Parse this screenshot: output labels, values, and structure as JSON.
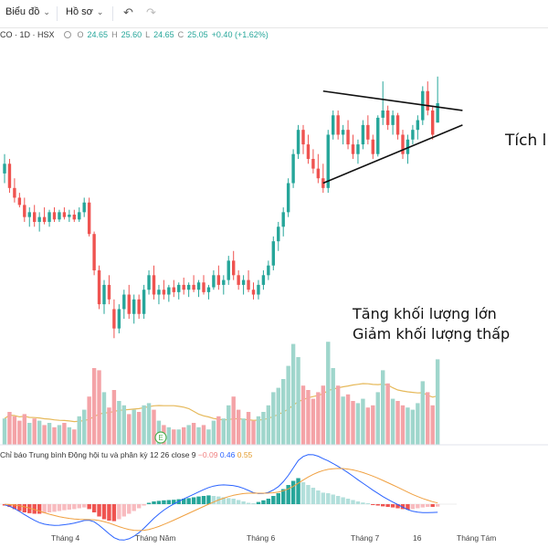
{
  "toolbar": {
    "chart_menu": "Biểu đồ",
    "profile_menu": "Hồ sơ"
  },
  "legend": {
    "symbol": "CO · 1D · HSX",
    "o_label": "O",
    "o_value": "24.65",
    "h_label": "H",
    "h_value": "25.60",
    "l_label": "L",
    "l_value": "24.65",
    "c_label": "C",
    "c_value": "25.05",
    "change": "+0.40 (+1.62%)"
  },
  "annotations": {
    "pattern_label": "Tích l",
    "volume_line1": "Tăng khối lượng lớn",
    "volume_line2": "Giảm khối lượng thấp"
  },
  "indicator": {
    "name": "Chỉ báo Trung bình Động hội tu và phân kỳ 12 26 close 9",
    "hist_value": "−0.09",
    "macd_value": "0.46",
    "signal_value": "0.55"
  },
  "earnings_marker": "E",
  "xaxis": {
    "labels": [
      "Tháng 4",
      "Tháng Năm",
      "Tháng 6",
      "Tháng 7",
      "16",
      "Tháng Tám"
    ]
  },
  "colors": {
    "up": "#26a69a",
    "down": "#ef5350",
    "vol_up": "#9fd6cc",
    "vol_down": "#f4a3a7",
    "ma": "#e6b95a",
    "macd": "#2962ff",
    "signal": "#f0a040"
  },
  "chart_data": {
    "type": "candlestick",
    "candles": [
      [
        23.6,
        24.0,
        23.4,
        23.8
      ],
      [
        23.8,
        23.9,
        23.2,
        23.3
      ],
      [
        23.3,
        23.5,
        23.0,
        23.1
      ],
      [
        23.1,
        23.2,
        22.9,
        22.95
      ],
      [
        22.95,
        23.1,
        22.6,
        22.7
      ],
      [
        22.7,
        22.9,
        22.5,
        22.8
      ],
      [
        22.8,
        22.95,
        22.5,
        22.6
      ],
      [
        22.6,
        22.8,
        22.4,
        22.7
      ],
      [
        22.7,
        22.9,
        22.55,
        22.6
      ],
      [
        22.6,
        22.85,
        22.5,
        22.8
      ],
      [
        22.8,
        22.9,
        22.6,
        22.65
      ],
      [
        22.65,
        22.85,
        22.6,
        22.8
      ],
      [
        22.8,
        22.9,
        22.65,
        22.7
      ],
      [
        22.7,
        22.85,
        22.6,
        22.75
      ],
      [
        22.75,
        22.85,
        22.6,
        22.65
      ],
      [
        22.65,
        22.9,
        22.6,
        22.8
      ],
      [
        22.8,
        23.1,
        22.7,
        23.0
      ],
      [
        23.0,
        23.1,
        22.3,
        22.35
      ],
      [
        22.35,
        22.4,
        21.5,
        21.6
      ],
      [
        21.6,
        21.7,
        20.8,
        20.9
      ],
      [
        20.9,
        21.4,
        20.7,
        21.3
      ],
      [
        21.3,
        21.5,
        20.9,
        21.0
      ],
      [
        20.8,
        21.0,
        20.2,
        20.4
      ],
      [
        20.4,
        20.9,
        20.3,
        20.8
      ],
      [
        20.8,
        21.2,
        20.6,
        21.1
      ],
      [
        21.1,
        21.3,
        20.6,
        20.7
      ],
      [
        20.7,
        21.1,
        20.5,
        21.0
      ],
      [
        21.0,
        21.1,
        20.6,
        20.7
      ],
      [
        20.7,
        21.3,
        20.6,
        21.2
      ],
      [
        21.2,
        21.6,
        21.1,
        21.5
      ],
      [
        21.5,
        21.7,
        21.0,
        21.1
      ],
      [
        21.1,
        21.3,
        20.9,
        21.2
      ],
      [
        21.2,
        21.4,
        21.0,
        21.1
      ],
      [
        21.1,
        21.3,
        20.95,
        21.25
      ],
      [
        21.25,
        21.4,
        21.05,
        21.15
      ],
      [
        21.15,
        21.35,
        21.0,
        21.3
      ],
      [
        21.3,
        21.45,
        21.1,
        21.2
      ],
      [
        21.2,
        21.35,
        21.05,
        21.3
      ],
      [
        21.3,
        21.5,
        21.15,
        21.2
      ],
      [
        21.2,
        21.4,
        21.05,
        21.35
      ],
      [
        21.35,
        21.5,
        21.1,
        21.15
      ],
      [
        21.15,
        21.3,
        21.0,
        21.25
      ],
      [
        21.25,
        21.6,
        21.2,
        21.5
      ],
      [
        21.5,
        21.7,
        21.2,
        21.3
      ],
      [
        21.3,
        21.5,
        21.1,
        21.4
      ],
      [
        21.4,
        21.9,
        21.3,
        21.8
      ],
      [
        21.8,
        22.0,
        21.4,
        21.5
      ],
      [
        21.5,
        21.6,
        21.2,
        21.3
      ],
      [
        21.3,
        21.5,
        21.1,
        21.4
      ],
      [
        21.4,
        21.6,
        21.15,
        21.2
      ],
      [
        21.2,
        21.35,
        21.0,
        21.1
      ],
      [
        21.1,
        21.4,
        21.0,
        21.3
      ],
      [
        21.3,
        21.6,
        21.2,
        21.5
      ],
      [
        21.5,
        21.8,
        21.4,
        21.7
      ],
      [
        21.7,
        22.3,
        21.6,
        22.2
      ],
      [
        22.2,
        22.6,
        22.0,
        22.5
      ],
      [
        22.5,
        22.9,
        22.3,
        22.8
      ],
      [
        22.8,
        23.5,
        22.7,
        23.4
      ],
      [
        23.4,
        24.1,
        23.3,
        24.0
      ],
      [
        24.0,
        24.6,
        23.9,
        24.5
      ],
      [
        24.5,
        24.6,
        24.0,
        24.2
      ],
      [
        24.2,
        24.4,
        23.8,
        23.9
      ],
      [
        23.9,
        24.1,
        23.6,
        23.7
      ],
      [
        23.7,
        24.0,
        23.4,
        23.5
      ],
      [
        23.5,
        23.8,
        23.2,
        23.3
      ],
      [
        23.3,
        24.5,
        23.2,
        24.4
      ],
      [
        24.4,
        24.9,
        24.3,
        24.8
      ],
      [
        24.8,
        24.9,
        24.3,
        24.4
      ],
      [
        24.4,
        24.6,
        24.2,
        24.5
      ],
      [
        24.5,
        24.7,
        24.1,
        24.2
      ],
      [
        24.2,
        24.4,
        23.9,
        24.0
      ],
      [
        24.0,
        24.3,
        23.8,
        24.2
      ],
      [
        24.2,
        24.7,
        24.1,
        24.6
      ],
      [
        24.6,
        24.8,
        24.2,
        24.3
      ],
      [
        24.3,
        24.4,
        23.9,
        24.0
      ],
      [
        24.0,
        24.8,
        23.95,
        24.75
      ],
      [
        24.75,
        25.5,
        24.6,
        24.9
      ],
      [
        24.9,
        25.0,
        24.5,
        24.6
      ],
      [
        24.6,
        24.9,
        24.4,
        24.8
      ],
      [
        24.8,
        24.85,
        24.3,
        24.4
      ],
      [
        24.4,
        24.5,
        23.9,
        24.0
      ],
      [
        24.0,
        24.4,
        23.8,
        24.3
      ],
      [
        24.3,
        24.6,
        24.2,
        24.5
      ],
      [
        24.5,
        24.8,
        24.3,
        24.7
      ],
      [
        24.7,
        25.4,
        24.6,
        25.3
      ],
      [
        25.3,
        25.5,
        24.8,
        24.9
      ],
      [
        24.9,
        25.0,
        24.3,
        24.4
      ],
      [
        24.65,
        25.6,
        24.65,
        25.05
      ]
    ],
    "volume": [
      [
        1.2,
        1
      ],
      [
        1.5,
        0
      ],
      [
        1.3,
        0
      ],
      [
        1.1,
        0
      ],
      [
        1.4,
        0
      ],
      [
        1.0,
        1
      ],
      [
        1.2,
        0
      ],
      [
        1.1,
        1
      ],
      [
        0.9,
        0
      ],
      [
        1.0,
        1
      ],
      [
        0.8,
        0
      ],
      [
        0.9,
        1
      ],
      [
        1.0,
        0
      ],
      [
        0.8,
        1
      ],
      [
        0.7,
        0
      ],
      [
        1.3,
        1
      ],
      [
        1.6,
        1
      ],
      [
        2.2,
        0
      ],
      [
        3.5,
        0
      ],
      [
        3.4,
        0
      ],
      [
        2.4,
        1
      ],
      [
        1.7,
        0
      ],
      [
        2.5,
        0
      ],
      [
        2.0,
        1
      ],
      [
        1.8,
        1
      ],
      [
        1.4,
        0
      ],
      [
        1.6,
        1
      ],
      [
        1.5,
        0
      ],
      [
        1.8,
        1
      ],
      [
        1.9,
        1
      ],
      [
        1.6,
        0
      ],
      [
        1.1,
        1
      ],
      [
        0.9,
        0
      ],
      [
        0.8,
        1
      ],
      [
        0.7,
        0
      ],
      [
        0.7,
        1
      ],
      [
        0.8,
        0
      ],
      [
        0.9,
        1
      ],
      [
        1.0,
        0
      ],
      [
        0.8,
        1
      ],
      [
        0.9,
        0
      ],
      [
        0.7,
        1
      ],
      [
        1.1,
        1
      ],
      [
        1.3,
        0
      ],
      [
        1.2,
        1
      ],
      [
        1.8,
        1
      ],
      [
        2.2,
        0
      ],
      [
        1.6,
        0
      ],
      [
        1.2,
        1
      ],
      [
        1.5,
        0
      ],
      [
        1.1,
        0
      ],
      [
        1.3,
        1
      ],
      [
        1.5,
        1
      ],
      [
        1.8,
        1
      ],
      [
        2.4,
        1
      ],
      [
        2.6,
        1
      ],
      [
        3.0,
        1
      ],
      [
        3.6,
        1
      ],
      [
        4.6,
        1
      ],
      [
        4.0,
        1
      ],
      [
        2.7,
        0
      ],
      [
        2.5,
        0
      ],
      [
        2.1,
        0
      ],
      [
        2.4,
        0
      ],
      [
        2.7,
        0
      ],
      [
        4.7,
        1
      ],
      [
        3.5,
        1
      ],
      [
        2.7,
        0
      ],
      [
        2.2,
        1
      ],
      [
        2.3,
        0
      ],
      [
        2.0,
        0
      ],
      [
        1.9,
        1
      ],
      [
        2.1,
        1
      ],
      [
        1.7,
        0
      ],
      [
        1.8,
        0
      ],
      [
        2.4,
        1
      ],
      [
        3.4,
        1
      ],
      [
        2.8,
        0
      ],
      [
        2.1,
        1
      ],
      [
        2.0,
        0
      ],
      [
        1.8,
        0
      ],
      [
        1.7,
        1
      ],
      [
        1.6,
        1
      ],
      [
        1.9,
        1
      ],
      [
        2.9,
        1
      ],
      [
        2.4,
        0
      ],
      [
        1.8,
        0
      ],
      [
        3.9,
        1
      ]
    ],
    "macd_hist": [
      -0.05,
      -0.1,
      -0.18,
      -0.25,
      -0.3,
      -0.33,
      -0.35,
      -0.35,
      -0.33,
      -0.3,
      -0.28,
      -0.25,
      -0.22,
      -0.2,
      -0.18,
      -0.15,
      -0.12,
      -0.18,
      -0.3,
      -0.45,
      -0.55,
      -0.6,
      -0.62,
      -0.55,
      -0.45,
      -0.35,
      -0.25,
      -0.15,
      -0.05,
      0.05,
      0.1,
      0.12,
      0.14,
      0.15,
      0.16,
      0.18,
      0.2,
      0.22,
      0.25,
      0.28,
      0.3,
      0.32,
      0.3,
      0.28,
      0.25,
      0.22,
      0.2,
      0.15,
      0.1,
      0.05,
      0.02,
      0.08,
      0.14,
      0.2,
      0.3,
      0.4,
      0.55,
      0.7,
      0.85,
      0.95,
      0.8,
      0.7,
      0.6,
      0.5,
      0.42,
      0.4,
      0.35,
      0.3,
      0.25,
      0.2,
      0.15,
      0.1,
      0.06,
      0.02,
      -0.02,
      -0.05,
      -0.08,
      -0.1,
      -0.12,
      -0.15,
      -0.18,
      -0.2,
      -0.18,
      -0.15,
      -0.12,
      -0.1,
      -0.1,
      -0.09
    ],
    "trendlines": [
      {
        "from": [
          64,
          25.3
        ],
        "to": [
          92,
          24.9
        ]
      },
      {
        "from": [
          64,
          23.4
        ],
        "to": [
          92,
          24.6
        ]
      }
    ]
  }
}
